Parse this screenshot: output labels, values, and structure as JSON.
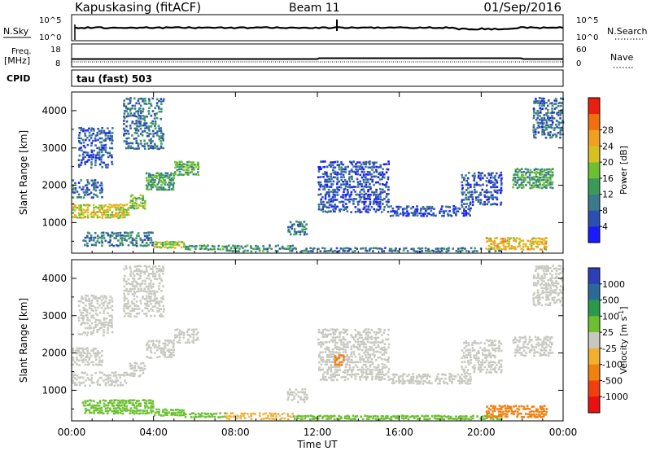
{
  "header": {
    "station": "Kapuskasing (fitACF)",
    "beam": "Beam 11",
    "date": "01/Sep/2016"
  },
  "panels": {
    "nsky": {
      "left_label": "N.Sky",
      "right_label": "N.Search",
      "left_ticks": [
        "10^5",
        "10^0"
      ],
      "right_ticks": [
        "10^5",
        "10^0"
      ]
    },
    "freq": {
      "left_label_line1": "Freq.",
      "left_label_line2": "[MHz]",
      "right_label": "Nave",
      "left_ticks": [
        "18",
        "8"
      ],
      "right_ticks": [
        "60",
        "0"
      ]
    },
    "cpid": {
      "label": "CPID",
      "mode": "tau (fast) 503"
    }
  },
  "chart_data": [
    {
      "type": "heatmap",
      "panel": "power",
      "ylabel": "Slant Range [km]",
      "xlabel": "Time UT",
      "x_ticks": [
        "00:00",
        "04:00",
        "08:00",
        "12:00",
        "16:00",
        "20:00",
        "00:00"
      ],
      "xlim_hours": [
        0,
        24
      ],
      "y_ticks": [
        1000,
        2000,
        3000,
        4000
      ],
      "ylim_km": [
        180,
        4500
      ],
      "colorbar": {
        "label": "Power [dB]",
        "ticks": [
          "4",
          "8",
          "12",
          "16",
          "20",
          "24",
          "28"
        ],
        "colors": [
          "#1a1aff",
          "#2a4fb0",
          "#3a7a8a",
          "#3a9a5a",
          "#6cc030",
          "#d8c020",
          "#f0a020",
          "#f07010",
          "#e82010"
        ]
      },
      "regions": [
        {
          "t0": 0.0,
          "t1": 2.8,
          "r0": 1150,
          "r1": 1550,
          "v": 22
        },
        {
          "t0": 2.8,
          "t1": 3.6,
          "r0": 1400,
          "r1": 1800,
          "v": 18
        },
        {
          "t0": 3.6,
          "t1": 5.0,
          "r0": 1900,
          "r1": 2400,
          "v": 14
        },
        {
          "t0": 5.0,
          "t1": 6.2,
          "r0": 2300,
          "r1": 2700,
          "v": 16
        },
        {
          "t0": 0.0,
          "t1": 1.5,
          "r0": 1700,
          "r1": 2200,
          "v": 8
        },
        {
          "t0": 0.3,
          "t1": 2.0,
          "r0": 2500,
          "r1": 3600,
          "v": 7
        },
        {
          "t0": 2.5,
          "t1": 4.5,
          "r0": 3000,
          "r1": 4400,
          "v": 9
        },
        {
          "t0": 0.5,
          "t1": 4.0,
          "r0": 400,
          "r1": 800,
          "v": 10
        },
        {
          "t0": 4.0,
          "t1": 5.5,
          "r0": 350,
          "r1": 550,
          "v": 20
        },
        {
          "t0": 5.5,
          "t1": 7.5,
          "r0": 300,
          "r1": 450,
          "v": 14
        },
        {
          "t0": 7.5,
          "t1": 10.8,
          "r0": 250,
          "r1": 450,
          "v": 12
        },
        {
          "t0": 10.5,
          "t1": 11.5,
          "r0": 700,
          "r1": 1100,
          "v": 10
        },
        {
          "t0": 10.8,
          "t1": 21.0,
          "r0": 250,
          "r1": 380,
          "v": 9
        },
        {
          "t0": 12.0,
          "t1": 15.5,
          "r0": 1300,
          "r1": 2700,
          "v": 6
        },
        {
          "t0": 15.5,
          "t1": 19.5,
          "r0": 1200,
          "r1": 1500,
          "v": 6
        },
        {
          "t0": 19.0,
          "t1": 21.0,
          "r0": 1500,
          "r1": 2400,
          "v": 6
        },
        {
          "t0": 20.2,
          "t1": 23.2,
          "r0": 300,
          "r1": 650,
          "v": 24
        },
        {
          "t0": 21.5,
          "t1": 23.5,
          "r0": 1950,
          "r1": 2500,
          "v": 14
        },
        {
          "t0": 22.5,
          "t1": 24.0,
          "r0": 3300,
          "r1": 4400,
          "v": 8
        }
      ]
    },
    {
      "type": "heatmap",
      "panel": "velocity",
      "ylabel": "Slant Range [km]",
      "xlabel": "Time UT",
      "x_ticks": [
        "00:00",
        "04:00",
        "08:00",
        "12:00",
        "16:00",
        "20:00",
        "00:00"
      ],
      "xlim_hours": [
        0,
        24
      ],
      "y_ticks": [
        1000,
        2000,
        3000,
        4000
      ],
      "ylim_km": [
        180,
        4500
      ],
      "colorbar": {
        "label": "Velocity [m s^-1]",
        "ticks": [
          "1000",
          "500",
          "100",
          "25",
          "-25",
          "-100",
          "-500",
          "-1000"
        ],
        "colors": [
          "#2a3fb8",
          "#2a6a9a",
          "#2a9a4a",
          "#6cc030",
          "#c8c8c0",
          "#f0b030",
          "#f08010",
          "#f04010",
          "#e81010"
        ]
      },
      "regions": [
        {
          "t0": 0.0,
          "t1": 2.8,
          "r0": 1150,
          "r1": 1550,
          "v": 0
        },
        {
          "t0": 2.8,
          "t1": 3.6,
          "r0": 1400,
          "r1": 1800,
          "v": 0
        },
        {
          "t0": 3.6,
          "t1": 5.0,
          "r0": 1900,
          "r1": 2400,
          "v": 0
        },
        {
          "t0": 5.0,
          "t1": 6.2,
          "r0": 2300,
          "r1": 2700,
          "v": 0
        },
        {
          "t0": 0.0,
          "t1": 1.5,
          "r0": 1700,
          "r1": 2200,
          "v": 0
        },
        {
          "t0": 0.3,
          "t1": 2.0,
          "r0": 2500,
          "r1": 3600,
          "v": 0
        },
        {
          "t0": 2.5,
          "t1": 4.5,
          "r0": 3000,
          "r1": 4400,
          "v": 0
        },
        {
          "t0": 0.5,
          "t1": 4.0,
          "r0": 400,
          "r1": 800,
          "v": 60
        },
        {
          "t0": 4.0,
          "t1": 5.5,
          "r0": 350,
          "r1": 550,
          "v": 80
        },
        {
          "t0": 5.5,
          "t1": 7.5,
          "r0": 300,
          "r1": 450,
          "v": 80
        },
        {
          "t0": 7.5,
          "t1": 10.8,
          "r0": 250,
          "r1": 450,
          "v": -40
        },
        {
          "t0": 10.5,
          "t1": 11.5,
          "r0": 700,
          "r1": 1100,
          "v": 0
        },
        {
          "t0": 10.8,
          "t1": 21.0,
          "r0": 250,
          "r1": 380,
          "v": 60
        },
        {
          "t0": 12.0,
          "t1": 15.5,
          "r0": 1300,
          "r1": 2700,
          "v": 0
        },
        {
          "t0": 12.8,
          "t1": 13.3,
          "r0": 1700,
          "r1": 2000,
          "v": -300
        },
        {
          "t0": 15.5,
          "t1": 19.5,
          "r0": 1200,
          "r1": 1500,
          "v": 0
        },
        {
          "t0": 19.0,
          "t1": 21.0,
          "r0": 1500,
          "r1": 2400,
          "v": 0
        },
        {
          "t0": 20.2,
          "t1": 23.2,
          "r0": 300,
          "r1": 650,
          "v": -250
        },
        {
          "t0": 21.5,
          "t1": 23.5,
          "r0": 1950,
          "r1": 2500,
          "v": 0
        },
        {
          "t0": 22.5,
          "t1": 24.0,
          "r0": 3300,
          "r1": 4400,
          "v": 0
        }
      ]
    }
  ]
}
